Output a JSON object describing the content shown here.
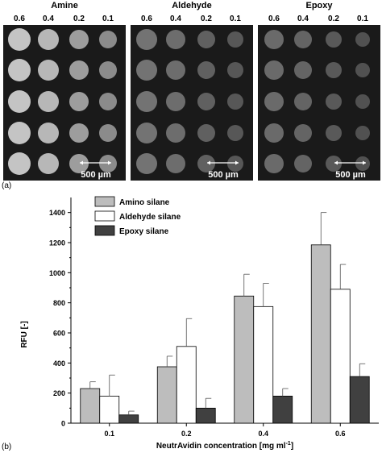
{
  "panel_a": {
    "label": "(a)",
    "scale_bar_text": "500 µm",
    "spot_brightness": [
      0.6,
      0.55,
      0.45,
      0.38
    ],
    "panels": [
      {
        "title": "Amine",
        "columns": [
          "0.6",
          "0.4",
          "0.2",
          "0.1"
        ]
      },
      {
        "title": "Aldehyde",
        "columns": [
          "0.6",
          "0.4",
          "0.2",
          "0.1"
        ]
      },
      {
        "title": "Epoxy",
        "columns": [
          "0.6",
          "0.4",
          "0.2",
          "0.1"
        ]
      }
    ]
  },
  "chart_data": {
    "panel_label": "(b)",
    "type": "bar",
    "categories": [
      "0.1",
      "0.2",
      "0.4",
      "0.6"
    ],
    "series": [
      {
        "name": "Amino silane",
        "values": [
          230,
          375,
          845,
          1185
        ],
        "errors": [
          45,
          70,
          145,
          215
        ],
        "color": "#bdbdbd"
      },
      {
        "name": "Aldehyde silane",
        "values": [
          180,
          510,
          775,
          890
        ],
        "errors": [
          140,
          185,
          155,
          165
        ],
        "color": "#ffffff"
      },
      {
        "name": "Epoxy silane",
        "values": [
          55,
          100,
          180,
          310
        ],
        "errors": [
          25,
          65,
          50,
          85
        ],
        "color": "#404040"
      }
    ],
    "xlabel_main": "NeutrAvidin concentration [mg ml",
    "xlabel_sup": "-1",
    "xlabel_end": "]",
    "ylabel": "RFU [-]",
    "ylim": [
      0,
      1500
    ],
    "yticks": [
      0,
      200,
      400,
      600,
      800,
      1000,
      1200,
      1400
    ],
    "legend_position": "top-left",
    "grid": false
  }
}
